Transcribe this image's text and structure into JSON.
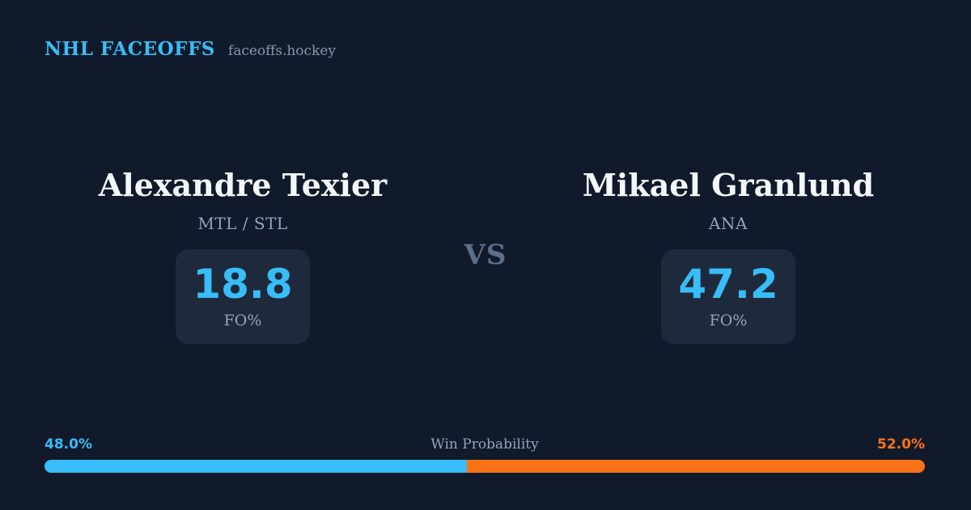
{
  "header": {
    "brand": "NHL FACEOFFS",
    "site": "faceoffs.hockey"
  },
  "vs_label": "VS",
  "players": [
    {
      "name": "Alexandre Texier",
      "team": "MTL / STL",
      "stat_value": "18.8",
      "stat_label": "FO%"
    },
    {
      "name": "Mikael Granlund",
      "team": "ANA",
      "stat_value": "47.2",
      "stat_label": "FO%"
    }
  ],
  "win_probability": {
    "title": "Win Probability",
    "left_label": "48.0%",
    "right_label": "52.0%",
    "left_value": 48.0,
    "right_value": 52.0,
    "left_color": "#38bdf8",
    "right_color": "#f97316"
  },
  "colors": {
    "background": "#111a2b",
    "card_background": "#1e293b",
    "accent_blue": "#38bdf8",
    "accent_orange": "#f97316",
    "text_primary": "#f3f6fa",
    "text_muted": "#94a3b8",
    "vs_muted": "#5d6f88"
  },
  "chart_data": {
    "type": "bar",
    "title": "Win Probability",
    "orientation": "horizontal-stacked",
    "categories": [
      "Alexandre Texier",
      "Mikael Granlund"
    ],
    "series": [
      {
        "name": "Win Probability %",
        "values": [
          48.0,
          52.0
        ]
      },
      {
        "name": "FO%",
        "values": [
          18.8,
          47.2
        ]
      }
    ],
    "teams": [
      "MTL / STL",
      "ANA"
    ],
    "colors": [
      "#38bdf8",
      "#f97316"
    ],
    "xlim": [
      0,
      100
    ],
    "legend": "off",
    "grid": "off"
  }
}
